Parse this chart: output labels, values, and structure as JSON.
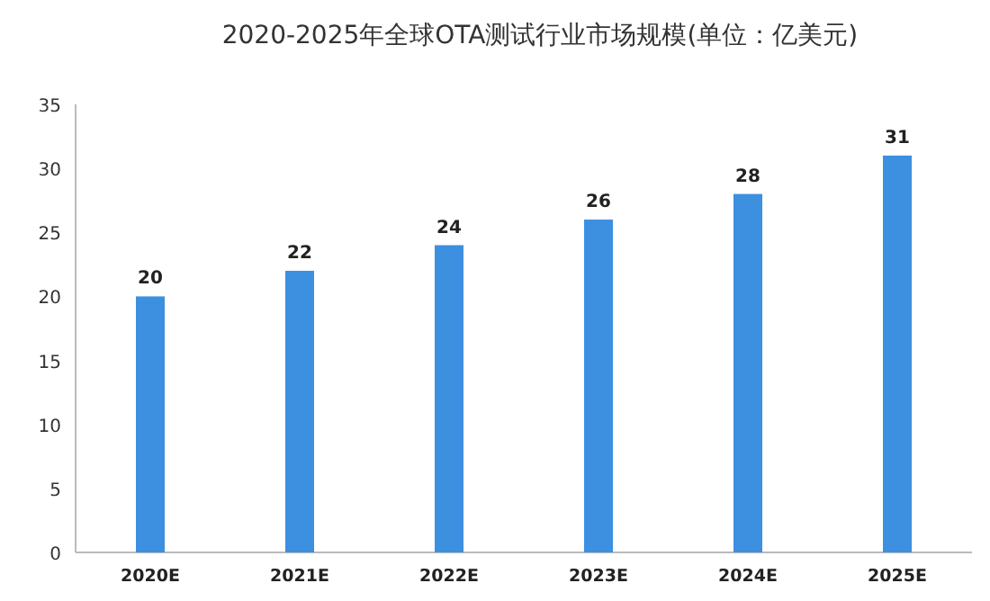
{
  "chart_data": {
    "type": "bar",
    "title": "2020-2025年全球OTA测试行业市场规模(单位：亿美元)",
    "categories": [
      "2020E",
      "2021E",
      "2022E",
      "2023E",
      "2024E",
      "2025E"
    ],
    "values": [
      20,
      22,
      24,
      26,
      28,
      31
    ],
    "color": "#3d8fe0",
    "ylim": [
      0,
      35
    ],
    "yticks": [
      0,
      5,
      10,
      15,
      20,
      25,
      30,
      35
    ],
    "data_labels": true
  }
}
